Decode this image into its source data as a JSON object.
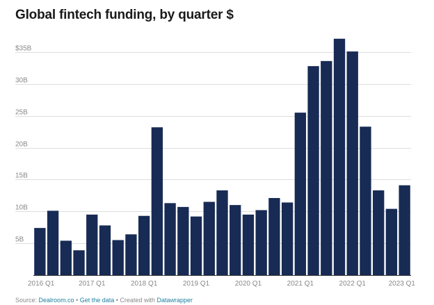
{
  "title": "Global fintech funding, by quarter $",
  "colors": {
    "bar": "#172b54",
    "grid": "#dddddd",
    "tick": "#888888",
    "link": "#1d81a2"
  },
  "footer": {
    "source_label": "Source:",
    "source_name": "Dealroom.co",
    "sep1": " • ",
    "get_data": "Get the data",
    "sep2": " • Created with ",
    "tool": "Datawrapper"
  },
  "chart_data": {
    "type": "bar",
    "title": "Global fintech funding, by quarter $",
    "xlabel": "",
    "ylabel": "",
    "ylim": [
      0,
      37
    ],
    "grid": true,
    "legend": "none",
    "y_ticks": [
      {
        "value": 5,
        "label": "5B"
      },
      {
        "value": 10,
        "label": "10B"
      },
      {
        "value": 15,
        "label": "15B"
      },
      {
        "value": 20,
        "label": "20B"
      },
      {
        "value": 25,
        "label": "25B"
      },
      {
        "value": 30,
        "label": "30B"
      },
      {
        "value": 35,
        "label": "$35B"
      }
    ],
    "x_tick_labels": [
      {
        "index": 0,
        "label": "2016 Q1"
      },
      {
        "index": 4,
        "label": "2017 Q1"
      },
      {
        "index": 8,
        "label": "2018 Q1"
      },
      {
        "index": 12,
        "label": "2019 Q1"
      },
      {
        "index": 16,
        "label": "2020 Q1"
      },
      {
        "index": 20,
        "label": "2021 Q1"
      },
      {
        "index": 24,
        "label": "2022 Q1"
      },
      {
        "index": 28,
        "label": "2023 Q1"
      }
    ],
    "categories": [
      "2016 Q1",
      "2016 Q2",
      "2016 Q3",
      "2016 Q4",
      "2017 Q1",
      "2017 Q2",
      "2017 Q3",
      "2017 Q4",
      "2018 Q1",
      "2018 Q2",
      "2018 Q3",
      "2018 Q4",
      "2019 Q1",
      "2019 Q2",
      "2019 Q3",
      "2019 Q4",
      "2020 Q1",
      "2020 Q2",
      "2020 Q3",
      "2020 Q4",
      "2021 Q1",
      "2021 Q2",
      "2021 Q3",
      "2021 Q4",
      "2022 Q1",
      "2022 Q2",
      "2022 Q3",
      "2022 Q4",
      "2023 Q1"
    ],
    "values": [
      7.4,
      10.1,
      5.4,
      3.9,
      9.5,
      7.8,
      5.5,
      6.4,
      9.3,
      23.2,
      11.3,
      10.7,
      9.2,
      11.5,
      13.3,
      11.0,
      9.5,
      10.2,
      12.1,
      11.4,
      25.5,
      32.8,
      33.6,
      37.1,
      35.1,
      23.3,
      13.3,
      10.4,
      14.1
    ]
  }
}
